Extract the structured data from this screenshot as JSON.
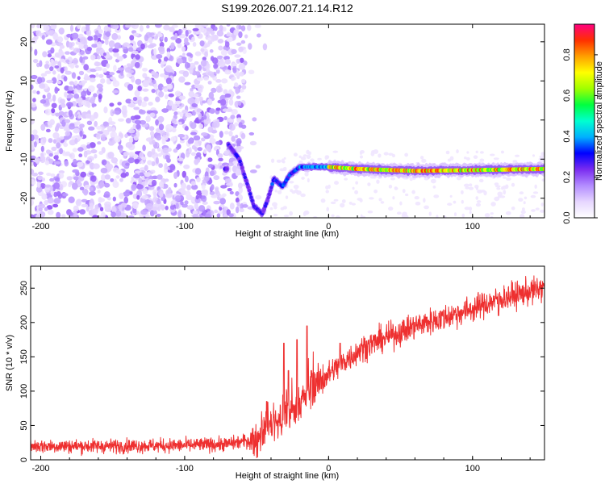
{
  "title": "S199.2026.007.21.14.R12",
  "chart_data": [
    {
      "type": "heatmap",
      "name": "spectrogram",
      "xlabel": "Height of straight line (km)",
      "ylabel": "Frequency (Hz)",
      "xlim": [
        -207,
        150
      ],
      "ylim": [
        -25,
        24.5
      ],
      "x_ticks": [
        -200,
        -100,
        0,
        100
      ],
      "x_tick_labels": [
        "-200",
        "-100",
        "0",
        "100"
      ],
      "y_ticks": [
        -20,
        -10,
        0,
        10,
        20
      ],
      "y_tick_labels": [
        "-20",
        "-10",
        "0",
        "10",
        "20"
      ],
      "noise_region_x": [
        -207,
        -58
      ],
      "noise_level": 0.15,
      "signal_track": [
        {
          "x": -70,
          "f": -6
        },
        {
          "x": -62,
          "f": -10
        },
        {
          "x": -56,
          "f": -17
        },
        {
          "x": -52,
          "f": -22
        },
        {
          "x": -46,
          "f": -24
        },
        {
          "x": -42,
          "f": -20
        },
        {
          "x": -38,
          "f": -15
        },
        {
          "x": -32,
          "f": -17
        },
        {
          "x": -27,
          "f": -14
        },
        {
          "x": -20,
          "f": -12
        },
        {
          "x": -10,
          "f": -12
        },
        {
          "x": 0,
          "f": -12
        },
        {
          "x": 20,
          "f": -12.5
        },
        {
          "x": 60,
          "f": -13
        },
        {
          "x": 100,
          "f": -12.8
        },
        {
          "x": 150,
          "f": -12.5
        }
      ],
      "colorbar": {
        "label": "Normalized spectral amplitude",
        "range": [
          0,
          0.95
        ],
        "ticks": [
          0.0,
          0.2,
          0.4,
          0.6,
          0.8
        ],
        "tick_labels": [
          "0.0",
          "0.2",
          "0.4",
          "0.6",
          "0.8"
        ],
        "colors": [
          "#ffffff",
          "#e6d6ff",
          "#b38cff",
          "#7a2cf0",
          "#0000ff",
          "#00b0ff",
          "#00ffd0",
          "#00ff40",
          "#a0ff00",
          "#ffff00",
          "#ffa000",
          "#ff3000",
          "#ff0080"
        ]
      }
    },
    {
      "type": "line",
      "name": "snr",
      "xlabel": "Height of straight line (km)",
      "ylabel": "SNR (10 * v/v)",
      "xlim": [
        -207,
        150
      ],
      "ylim": [
        0,
        282
      ],
      "x_ticks": [
        -200,
        -100,
        0,
        100
      ],
      "x_tick_labels": [
        "-200",
        "-100",
        "0",
        "100"
      ],
      "y_ticks": [
        0,
        50,
        100,
        150,
        200,
        250
      ],
      "y_tick_labels": [
        "0",
        "50",
        "100",
        "150",
        "200",
        "250"
      ],
      "color": "#ee3030",
      "trend": [
        {
          "x": -207,
          "y": 20
        },
        {
          "x": -150,
          "y": 20
        },
        {
          "x": -100,
          "y": 21
        },
        {
          "x": -70,
          "y": 23
        },
        {
          "x": -50,
          "y": 30
        },
        {
          "x": -45,
          "y": 45
        },
        {
          "x": -35,
          "y": 55
        },
        {
          "x": -25,
          "y": 70
        },
        {
          "x": -18,
          "y": 88
        },
        {
          "x": -10,
          "y": 108
        },
        {
          "x": 0,
          "y": 125
        },
        {
          "x": 10,
          "y": 142
        },
        {
          "x": 25,
          "y": 165
        },
        {
          "x": 45,
          "y": 182
        },
        {
          "x": 60,
          "y": 195
        },
        {
          "x": 80,
          "y": 207
        },
        {
          "x": 100,
          "y": 220
        },
        {
          "x": 120,
          "y": 235
        },
        {
          "x": 150,
          "y": 250
        }
      ],
      "spikes": [
        {
          "x": -43,
          "y": 85
        },
        {
          "x": -31,
          "y": 170
        },
        {
          "x": -28,
          "y": 130
        },
        {
          "x": -22,
          "y": 175
        },
        {
          "x": -15,
          "y": 195
        },
        {
          "x": -12,
          "y": 130
        },
        {
          "x": 8,
          "y": 170
        },
        {
          "x": 118,
          "y": 210
        }
      ]
    }
  ]
}
